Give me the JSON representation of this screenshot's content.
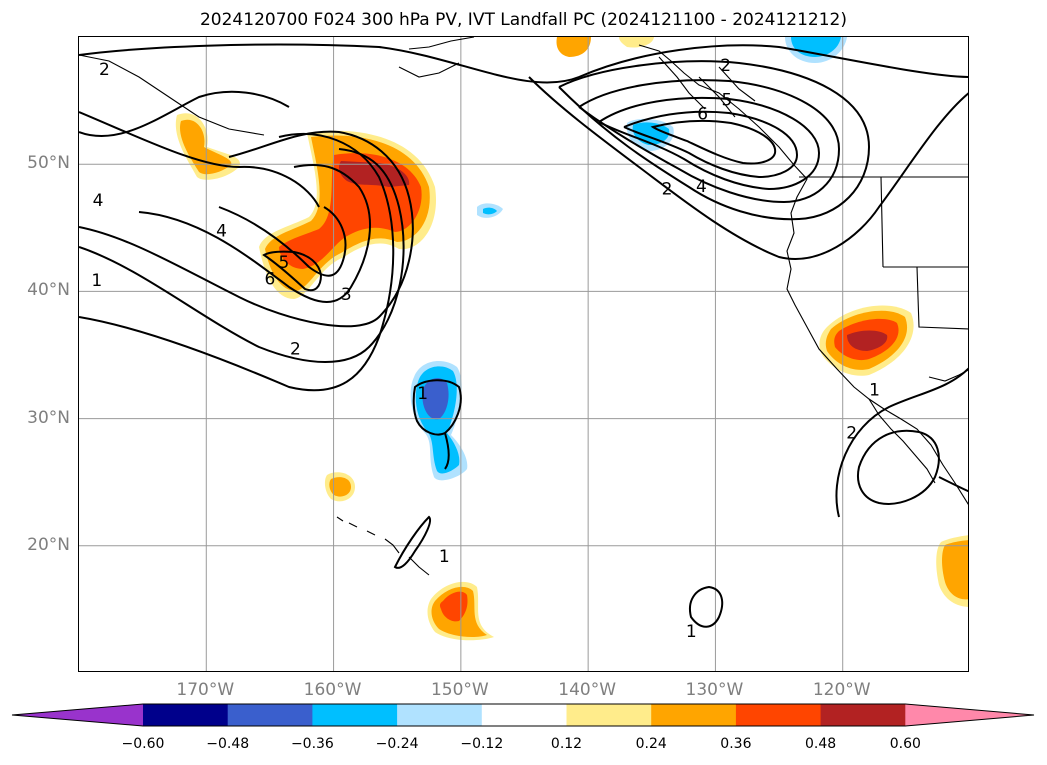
{
  "title": "2024120700 F024 300 hPa PV, IVT Landfall PC (2024121100 - 2024121212)",
  "map": {
    "projection": "PlateCarree",
    "lon_range": [
      -180,
      -110
    ],
    "lat_range": [
      10,
      60
    ],
    "lat_ticks": [
      {
        "value": 20,
        "label": "20°N"
      },
      {
        "value": 30,
        "label": "30°N"
      },
      {
        "value": 40,
        "label": "40°N"
      },
      {
        "value": 50,
        "label": "50°N"
      }
    ],
    "lon_ticks": [
      {
        "value": -170,
        "label": "170°W"
      },
      {
        "value": -160,
        "label": "160°W"
      },
      {
        "value": -150,
        "label": "150°W"
      },
      {
        "value": -140,
        "label": "140°W"
      },
      {
        "value": -130,
        "label": "130°W"
      },
      {
        "value": -120,
        "label": "120°W"
      }
    ],
    "gridlines": true
  },
  "contour_labels": [
    {
      "text": "2",
      "lon": -178,
      "lat": 57.5
    },
    {
      "text": "4",
      "lon": -178.5,
      "lat": 47.2
    },
    {
      "text": "4",
      "lon": -168.8,
      "lat": 44.8
    },
    {
      "text": "1",
      "lon": -178.6,
      "lat": 40.9
    },
    {
      "text": "5",
      "lon": -163.9,
      "lat": 42.3
    },
    {
      "text": "6",
      "lon": -165,
      "lat": 41
    },
    {
      "text": "3",
      "lon": -159,
      "lat": 39.8
    },
    {
      "text": "2",
      "lon": -163,
      "lat": 35.5
    },
    {
      "text": "1",
      "lon": -153,
      "lat": 32
    },
    {
      "text": "1",
      "lon": -151.3,
      "lat": 19.2
    },
    {
      "text": "2",
      "lon": -129.2,
      "lat": 57.8
    },
    {
      "text": "5",
      "lon": -129.1,
      "lat": 55.1
    },
    {
      "text": "6",
      "lon": -131,
      "lat": 54
    },
    {
      "text": "2",
      "lon": -133.8,
      "lat": 48.1
    },
    {
      "text": "4",
      "lon": -131.1,
      "lat": 48.3
    },
    {
      "text": "1",
      "lon": -117.5,
      "lat": 32.3
    },
    {
      "text": "2",
      "lon": -119.3,
      "lat": 28.9
    },
    {
      "text": "1",
      "lon": -131.9,
      "lat": 13.3
    }
  ],
  "colorbar": {
    "ticks": [
      "−0.60",
      "−0.48",
      "−0.36",
      "−0.24",
      "−0.12",
      "0.12",
      "0.24",
      "0.36",
      "0.48",
      "0.60"
    ],
    "colors": [
      "#9933cc",
      "#00008b",
      "#3a5fcd",
      "#00bfff",
      "#b0e2ff",
      "#ffffff",
      "#ffec8b",
      "#ffa500",
      "#ff4500",
      "#b22222",
      "#ff88aa"
    ]
  }
}
